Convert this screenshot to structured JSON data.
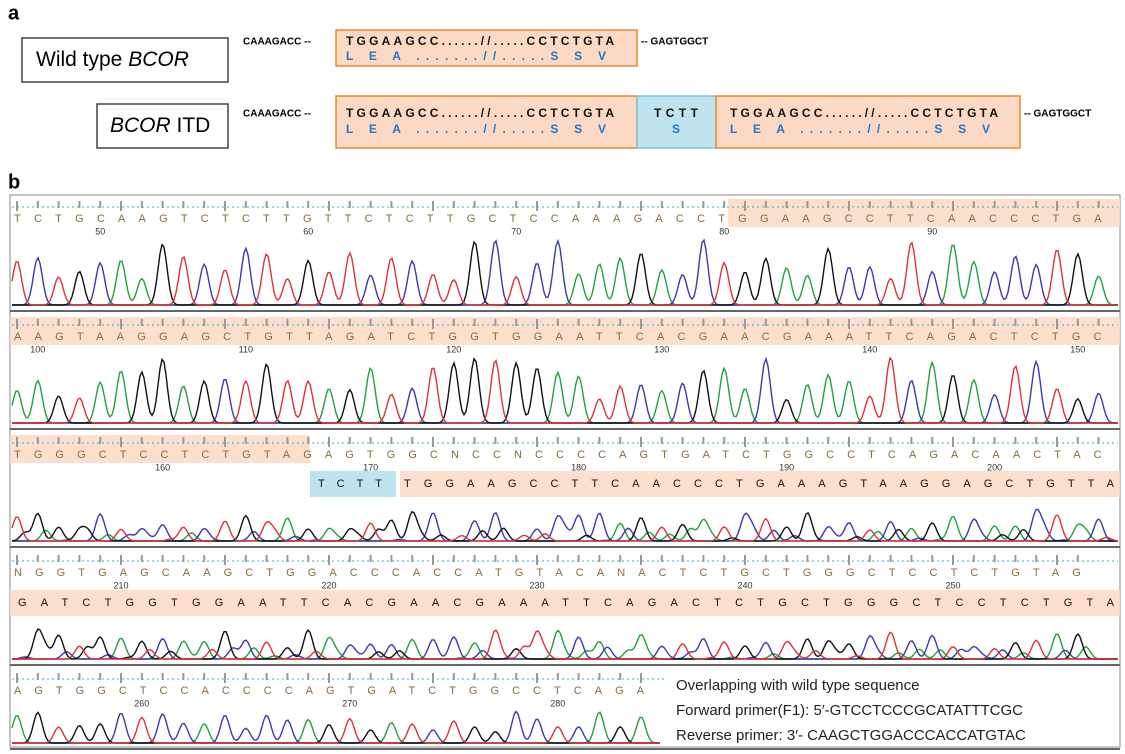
{
  "panel_a": {
    "label": "a",
    "wild_type": {
      "name_prefix": "Wild type ",
      "name_gene": "BCOR",
      "left": "CAAAGACC --",
      "dna": "TGGAAGCC......//.....CCTCTGTA",
      "protein": "L    E    A    .......//.....S    S    V",
      "right": "-- GAGTGGCT"
    },
    "itd": {
      "name_gene": "BCOR",
      "name_suffix": " ITD",
      "left": "CAAAGACC --",
      "dna1": "TGGAAGCC......//.....CCTCTGTA",
      "protein1": "L    E    A    .......//.....S    S    V",
      "insert_dna": "TCTT",
      "insert_protein": "S",
      "dna2": "TGGAAGCC......//.....CCTCTGTA",
      "protein2": "L    E    A    .......//.....S    S    V",
      "right": "-- GAGTGGCT"
    }
  },
  "panel_b": {
    "label": "b",
    "rows": [
      {
        "bases": "TCTGCAAGTCTCTTGTTCTCTTGCTCCAAAGACCTGGAAGCCTTCAACCCTGA",
        "positions": [
          50,
          60,
          70,
          80,
          90
        ]
      },
      {
        "bases": "AAGTAAGGAGCTGTTAGATCTGGTGGAATTCACGAACGAAATTCAGACTCTGC",
        "positions": [
          100,
          110,
          120,
          130,
          140,
          150
        ]
      },
      {
        "bases": "TGGGCTCCTCTGTAGAGTGGCNCCNCCCCAGTGATCTGGCCTCAGACAACTAC",
        "positions": [
          160,
          170,
          180,
          190,
          200
        ],
        "insert": "TCTT",
        "itd_bases": "TGGAAGCCTTCAACCCTGAAAGTAAGGAGCTGTTA"
      },
      {
        "bases": "NGGTGAGCAAGCTGGACCCACCATGTACANACTCTGCTGGGCTCCTCTGTAG",
        "positions": [
          210,
          220,
          230,
          240,
          250
        ],
        "itd_bases": "GATCTGGTGGAATTCACGAACGAAATTCAGACTCTGCTGGGCTCCTCTGTA"
      },
      {
        "bases": "AGTGGCTCCACCCCAGTGATCTGGCCTCAGA",
        "positions": [
          260,
          270,
          280
        ]
      }
    ],
    "notes": [
      "Overlapping with wild type sequence",
      "Forward primer(F1): 5′-GTCCTCCCGCATATTTCGC",
      "Reverse primer: 3′- CAAGCTGGACCCACCATGTAC"
    ]
  }
}
